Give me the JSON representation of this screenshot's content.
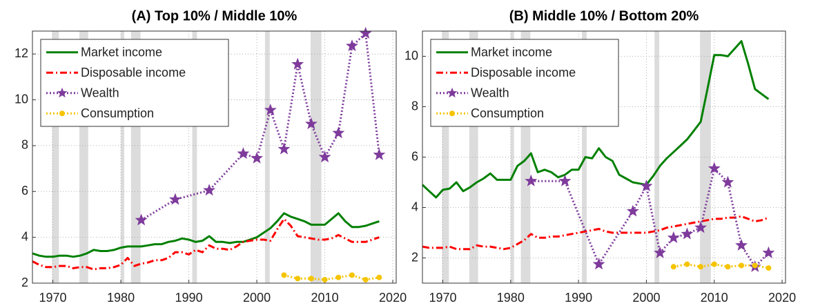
{
  "chart_data": [
    {
      "type": "line",
      "title": "(A) Top 10% / Middle 10%",
      "xlim": [
        1967,
        2020.5
      ],
      "xticks": [
        1970,
        1980,
        1990,
        2000,
        2010,
        2020
      ],
      "ylim": [
        2,
        13
      ],
      "yticks": [
        2,
        4,
        6,
        8,
        10,
        12
      ],
      "grid": true,
      "legend": "upper left",
      "shaded_regions": [
        [
          1969.9,
          1970.9
        ],
        [
          1973.9,
          1975.2
        ],
        [
          1980.0,
          1980.5
        ],
        [
          1981.5,
          1982.9
        ],
        [
          1990.5,
          1991.2
        ],
        [
          2001.2,
          2001.9
        ],
        [
          2007.9,
          2009.5
        ]
      ],
      "x": [
        1967,
        1968,
        1969,
        1970,
        1971,
        1972,
        1973,
        1974,
        1975,
        1976,
        1977,
        1978,
        1979,
        1980,
        1981,
        1982,
        1983,
        1984,
        1985,
        1986,
        1987,
        1988,
        1989,
        1990,
        1991,
        1992,
        1993,
        1994,
        1995,
        1996,
        1997,
        1998,
        1999,
        2000,
        2001,
        2002,
        2003,
        2004,
        2005,
        2006,
        2007,
        2008,
        2009,
        2010,
        2011,
        2012,
        2013,
        2014,
        2015,
        2016,
        2017,
        2018
      ],
      "series": [
        {
          "name": "Market income",
          "color": "#008000",
          "style": "solid",
          "values": [
            3.3,
            3.2,
            3.15,
            3.15,
            3.2,
            3.2,
            3.15,
            3.2,
            3.3,
            3.45,
            3.4,
            3.4,
            3.45,
            3.55,
            3.6,
            3.6,
            3.6,
            3.65,
            3.7,
            3.7,
            3.8,
            3.85,
            3.95,
            3.9,
            3.8,
            3.85,
            4.05,
            3.8,
            3.8,
            3.75,
            3.8,
            3.8,
            3.9,
            4.0,
            4.2,
            4.4,
            4.7,
            5.05,
            4.9,
            4.8,
            4.7,
            4.55,
            4.55,
            4.55,
            4.8,
            5.05,
            4.7,
            4.45,
            4.45,
            4.5,
            4.6,
            4.7
          ]
        },
        {
          "name": "Disposable income",
          "color": "#ff0000",
          "style": "dashdot",
          "values": [
            2.95,
            2.8,
            2.7,
            2.7,
            2.75,
            2.75,
            2.65,
            2.7,
            2.7,
            2.6,
            2.65,
            2.65,
            2.7,
            2.8,
            3.1,
            2.75,
            2.85,
            2.9,
            3.0,
            3.0,
            3.1,
            3.35,
            3.35,
            3.25,
            3.45,
            3.35,
            3.65,
            3.5,
            3.5,
            3.45,
            3.6,
            3.8,
            3.85,
            3.9,
            3.9,
            3.85,
            4.35,
            4.8,
            4.5,
            4.05,
            4.0,
            3.95,
            3.9,
            3.9,
            3.95,
            4.1,
            3.95,
            3.8,
            3.8,
            3.8,
            3.9,
            4.0
          ]
        },
        {
          "name": "Wealth",
          "color": "#7e3b9c",
          "style": "dotted",
          "marker": "star",
          "x": [
            1983,
            1988,
            1993,
            1998,
            2000,
            2002,
            2004,
            2006,
            2008,
            2010,
            2012,
            2014,
            2016,
            2018
          ],
          "values": [
            4.75,
            5.65,
            6.05,
            7.65,
            7.45,
            9.55,
            7.85,
            11.55,
            8.95,
            7.5,
            8.55,
            12.35,
            12.9,
            7.6
          ]
        },
        {
          "name": "Consumption",
          "color": "#f5c400",
          "style": "dotted",
          "marker": "circle",
          "x": [
            2004,
            2006,
            2008,
            2010,
            2012,
            2014,
            2016,
            2018
          ],
          "values": [
            2.35,
            2.2,
            2.2,
            2.15,
            2.25,
            2.35,
            2.15,
            2.25
          ]
        }
      ]
    },
    {
      "type": "line",
      "title": "(B) Middle 10% / Bottom 20%",
      "xlim": [
        1967,
        2020.5
      ],
      "xticks": [
        1970,
        1980,
        1990,
        2000,
        2010,
        2020
      ],
      "ylim": [
        1,
        11
      ],
      "yticks": [
        2,
        4,
        6,
        8,
        10
      ],
      "grid": true,
      "legend": "upper left",
      "shaded_regions": [
        [
          1969.9,
          1970.9
        ],
        [
          1973.9,
          1975.2
        ],
        [
          1980.0,
          1980.5
        ],
        [
          1981.5,
          1982.9
        ],
        [
          1990.5,
          1991.2
        ],
        [
          2001.2,
          2001.9
        ],
        [
          2007.9,
          2009.5
        ]
      ],
      "x": [
        1967,
        1968,
        1969,
        1970,
        1971,
        1972,
        1973,
        1974,
        1975,
        1976,
        1977,
        1978,
        1979,
        1980,
        1981,
        1982,
        1983,
        1984,
        1985,
        1986,
        1987,
        1988,
        1989,
        1990,
        1991,
        1992,
        1993,
        1994,
        1995,
        1996,
        1997,
        1998,
        1999,
        2000,
        2001,
        2002,
        2003,
        2004,
        2005,
        2006,
        2007,
        2008,
        2009,
        2010,
        2011,
        2012,
        2013,
        2014,
        2015,
        2016,
        2017,
        2018
      ],
      "series": [
        {
          "name": "Market income",
          "color": "#008000",
          "style": "solid",
          "values": [
            4.9,
            4.65,
            4.4,
            4.7,
            4.75,
            5.0,
            4.65,
            4.8,
            5.0,
            5.15,
            5.35,
            5.1,
            5.1,
            5.1,
            5.65,
            5.85,
            6.15,
            5.4,
            5.5,
            5.4,
            5.2,
            5.3,
            5.5,
            5.5,
            6.0,
            5.95,
            6.35,
            6.0,
            5.85,
            5.3,
            5.15,
            5.0,
            4.95,
            4.9,
            5.25,
            5.65,
            5.95,
            6.2,
            6.45,
            6.7,
            7.05,
            7.4,
            8.7,
            10.05,
            10.05,
            10.0,
            10.3,
            10.6,
            9.7,
            8.7,
            8.5,
            8.3
          ]
        },
        {
          "name": "Disposable income",
          "color": "#ff0000",
          "style": "dashdot",
          "values": [
            2.45,
            2.4,
            2.4,
            2.4,
            2.45,
            2.35,
            2.35,
            2.35,
            2.5,
            2.45,
            2.45,
            2.4,
            2.35,
            2.4,
            2.55,
            2.7,
            2.95,
            2.8,
            2.8,
            2.85,
            2.85,
            2.9,
            2.95,
            3.0,
            3.05,
            3.1,
            3.15,
            3.05,
            3.0,
            3.0,
            3.0,
            3.0,
            3.0,
            3.0,
            3.05,
            3.1,
            3.2,
            3.25,
            3.3,
            3.35,
            3.4,
            3.45,
            3.5,
            3.55,
            3.55,
            3.6,
            3.6,
            3.65,
            3.55,
            3.45,
            3.5,
            3.6
          ]
        },
        {
          "name": "Wealth",
          "color": "#7e3b9c",
          "style": "dotted",
          "marker": "star",
          "x": [
            1983,
            1988,
            1993,
            1998,
            2000,
            2002,
            2004,
            2006,
            2008,
            2010,
            2012,
            2014,
            2016,
            2018
          ],
          "values": [
            5.05,
            5.05,
            1.75,
            3.85,
            4.85,
            2.2,
            2.8,
            2.95,
            3.2,
            5.55,
            5.0,
            2.5,
            1.65,
            2.2
          ]
        },
        {
          "name": "Consumption",
          "color": "#f5c400",
          "style": "dotted",
          "marker": "circle",
          "x": [
            2004,
            2006,
            2008,
            2010,
            2012,
            2014,
            2016,
            2018
          ],
          "values": [
            1.65,
            1.75,
            1.65,
            1.75,
            1.65,
            1.7,
            1.7,
            1.6
          ]
        }
      ]
    }
  ]
}
